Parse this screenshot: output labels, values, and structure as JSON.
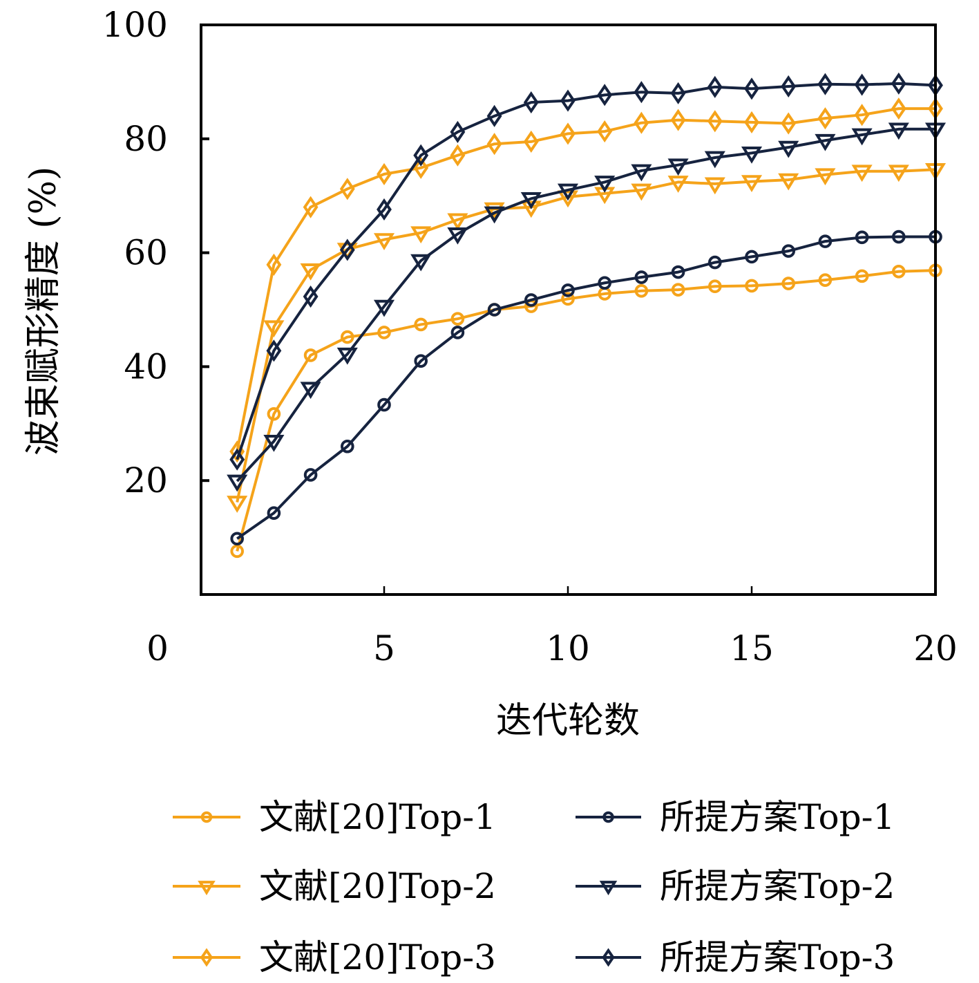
{
  "chart_data": {
    "type": "line",
    "title": "",
    "xlabel": "迭代轮数",
    "ylabel": "波束赋形精度 (%)",
    "xlim": [
      0,
      20
    ],
    "ylim": [
      0,
      100
    ],
    "xticks": [
      0,
      5,
      10,
      15,
      20
    ],
    "xtick_labels": [
      "0",
      "5",
      "10",
      "15",
      "20"
    ],
    "yticks": [
      20,
      40,
      60,
      80,
      100
    ],
    "ytick_labels": [
      "20",
      "40",
      "60",
      "80",
      "100"
    ],
    "grid": false,
    "legend_position": "bottom",
    "x": [
      1,
      2,
      3,
      4,
      5,
      6,
      7,
      8,
      9,
      10,
      11,
      12,
      13,
      14,
      15,
      16,
      17,
      18,
      19,
      20
    ],
    "series": [
      {
        "name": "文献[20]Top-1",
        "color": "#F5A31A",
        "marker": "circle",
        "values": [
          7.6,
          31.7,
          42.0,
          45.2,
          46.0,
          47.4,
          48.4,
          50.0,
          50.6,
          51.9,
          52.8,
          53.3,
          53.5,
          54.1,
          54.2,
          54.6,
          55.2,
          55.9,
          56.7,
          56.9
        ]
      },
      {
        "name": "文献[20]Top-2",
        "color": "#F5A31A",
        "marker": "triangle-down",
        "values": [
          16.2,
          47.0,
          57.0,
          60.6,
          62.3,
          63.5,
          65.8,
          67.7,
          68.0,
          69.8,
          70.4,
          71.0,
          72.4,
          72.1,
          72.5,
          72.8,
          73.7,
          74.3,
          74.3,
          74.6
        ]
      },
      {
        "name": "文献[20]Top-3",
        "color": "#F5A31A",
        "marker": "diamond",
        "values": [
          25.1,
          57.9,
          68.0,
          71.2,
          73.8,
          74.9,
          77.1,
          79.1,
          79.5,
          80.9,
          81.3,
          82.8,
          83.3,
          83.1,
          82.9,
          82.7,
          83.6,
          84.2,
          85.3,
          85.3
        ]
      },
      {
        "name": "所提方案Top-1",
        "color": "#16233F",
        "marker": "circle",
        "values": [
          9.8,
          14.3,
          21.0,
          26.0,
          33.3,
          41.0,
          46.0,
          50.0,
          51.7,
          53.4,
          54.7,
          55.7,
          56.6,
          58.3,
          59.3,
          60.3,
          62.0,
          62.7,
          62.8,
          62.8
        ]
      },
      {
        "name": "所提方案Top-2",
        "color": "#16233F",
        "marker": "triangle-down",
        "values": [
          19.9,
          26.9,
          36.2,
          42.2,
          50.6,
          58.6,
          63.3,
          67.0,
          69.5,
          71.0,
          72.4,
          74.4,
          75.4,
          76.7,
          77.5,
          78.5,
          79.7,
          80.7,
          81.7,
          81.7
        ]
      },
      {
        "name": "所提方案Top-3",
        "color": "#16233F",
        "marker": "diamond",
        "values": [
          23.7,
          42.8,
          52.3,
          60.5,
          67.6,
          77.1,
          81.2,
          84.0,
          86.4,
          86.7,
          87.7,
          88.2,
          88.0,
          89.1,
          88.8,
          89.2,
          89.6,
          89.5,
          89.7,
          89.4
        ]
      }
    ]
  }
}
